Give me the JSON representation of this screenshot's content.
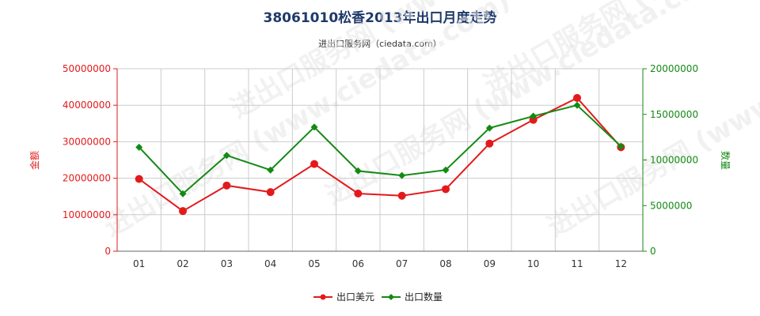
{
  "title": "38061010松香2013年出口月度走势",
  "subtitle": "进出口服务网（ciedata.com）",
  "watermark": "进出口服务网 (www.ciedata.com)",
  "colors": {
    "amount": "#e31a1c",
    "quantity": "#138a13",
    "grid": "#cccccc",
    "title": "#1f3a6a"
  },
  "chart_data": {
    "type": "line",
    "categories": [
      "01",
      "02",
      "03",
      "04",
      "05",
      "06",
      "07",
      "08",
      "09",
      "10",
      "11",
      "12"
    ],
    "y_left": {
      "label": "金额",
      "ylim": [
        0,
        50000000
      ],
      "ticks": [
        "0",
        "10000000",
        "20000000",
        "30000000",
        "40000000",
        "50000000"
      ],
      "tick_values": [
        0,
        10000000,
        20000000,
        30000000,
        40000000,
        50000000
      ]
    },
    "y_right": {
      "label": "数量",
      "ylim": [
        0,
        20000000
      ],
      "ticks": [
        "0",
        "5000000",
        "10000000",
        "15000000",
        "20000000"
      ],
      "tick_values": [
        0,
        5000000,
        10000000,
        15000000,
        20000000
      ]
    },
    "series": [
      {
        "name": "出口美元",
        "axis": "left",
        "values": [
          19800000,
          11000000,
          18000000,
          16200000,
          23900000,
          15800000,
          15200000,
          17000000,
          29500000,
          36000000,
          42000000,
          28500000
        ]
      },
      {
        "name": "出口数量",
        "axis": "right",
        "values": [
          11400000,
          6300000,
          10500000,
          8900000,
          13600000,
          8800000,
          8300000,
          8900000,
          13500000,
          14800000,
          16000000,
          11500000
        ]
      }
    ],
    "grid": true,
    "legend": "bottom-center"
  }
}
